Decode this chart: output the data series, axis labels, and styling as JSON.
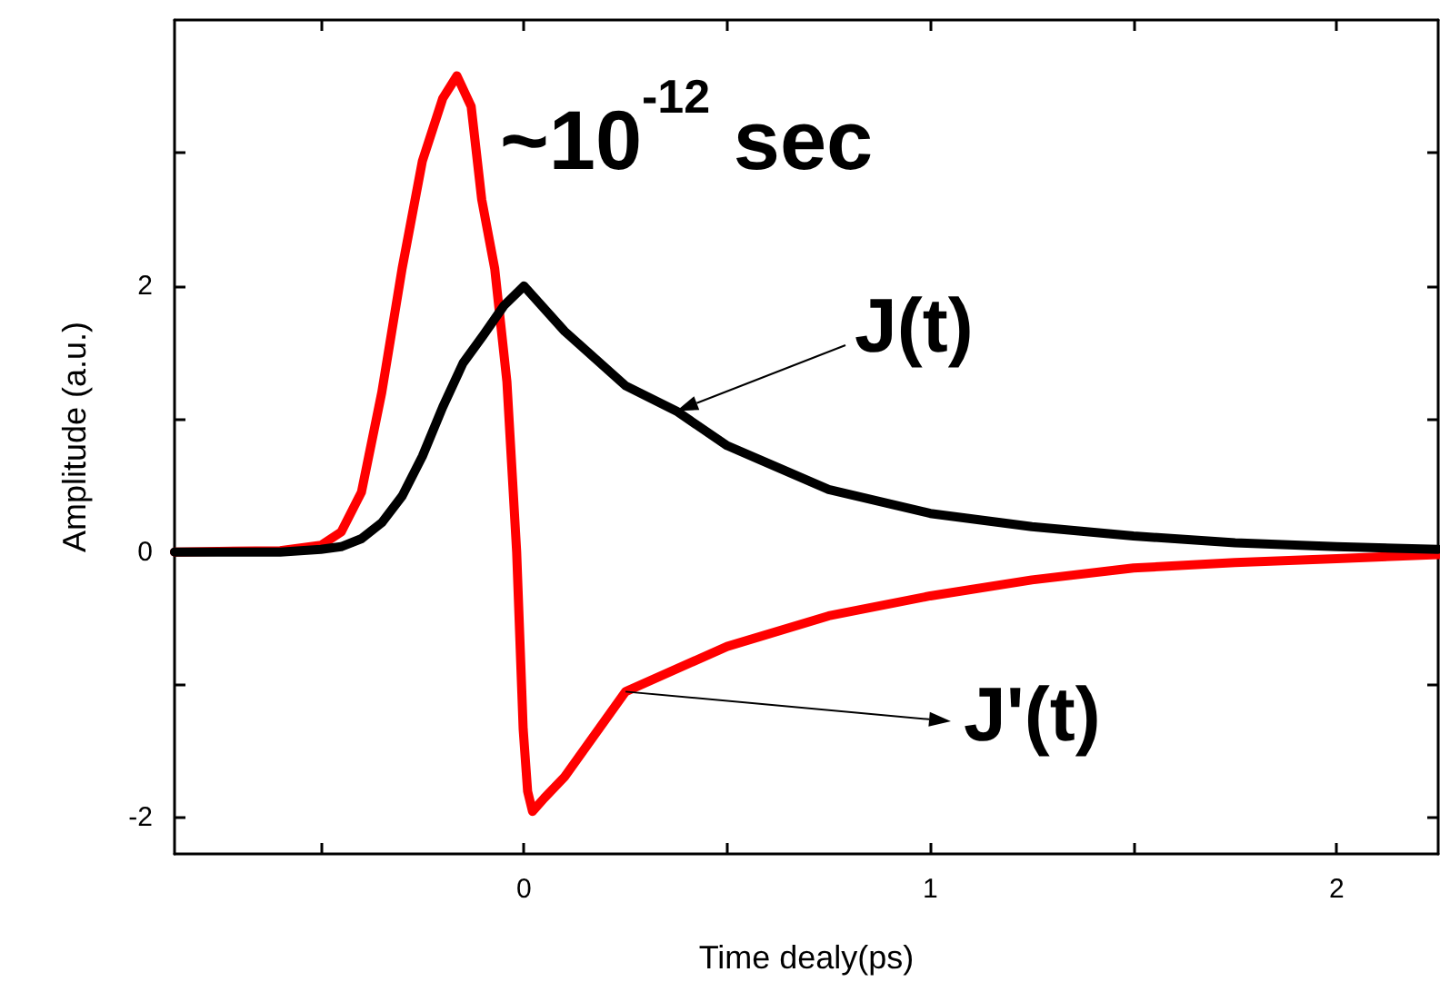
{
  "chart_data": {
    "type": "line",
    "xlabel": "Time dealy(ps)",
    "ylabel": "Amplitude (a.u.)",
    "annotations": [
      "~10$^{-12}$ sec",
      {
        "text": "J(t)",
        "x": 0.375,
        "y": 1.06
      },
      "J'(t)"
    ],
    "xlim": [
      -0.86,
      2.25
    ],
    "ylim": [
      -2.27,
      4
    ],
    "xticks": [
      {
        "value": -0.5,
        "label": null
      },
      0,
      {
        "value": 0.5,
        "label": null
      },
      1,
      {
        "value": 1.5,
        "label": null
      },
      2
    ],
    "yticks": [
      -2,
      {
        "value": -1,
        "label": null
      },
      0,
      {
        "value": 1,
        "label": null
      },
      2,
      {
        "value": 3,
        "label": null
      }
    ],
    "grid": false,
    "marker": "none",
    "line_style": "solid",
    "series": [
      {
        "color": "#000000",
        "x": [
          -0.86,
          -0.6,
          -0.5,
          -0.45,
          -0.4,
          -0.35,
          -0.3,
          -0.25,
          -0.2,
          -0.15,
          -0.1,
          -0.05,
          0,
          0.1,
          0.25,
          0.375,
          0.5,
          0.75,
          1,
          1.25,
          1.5,
          1.75,
          2,
          2.25
        ],
        "values": [
          0,
          0,
          0.02,
          0.04,
          0.1,
          0.22,
          0.42,
          0.72,
          1.09,
          1.42,
          1.63,
          1.85,
          2,
          1.66,
          1.25,
          1.06,
          0.8,
          0.47,
          0.29,
          0.19,
          0.12,
          0.07,
          0.04,
          0.02
        ]
      },
      {
        "color": "#ff0000",
        "x": [
          -0.86,
          -0.6,
          -0.5,
          -0.45,
          -0.4,
          -0.35,
          -0.3,
          -0.25,
          -0.2,
          -0.165,
          -0.13,
          -0.104,
          -0.072,
          -0.042,
          -0.018,
          -0.002,
          0.009,
          0.021,
          0.05,
          0.1,
          0.25,
          0.5,
          0.75,
          1,
          1.25,
          1.5,
          1.75,
          2,
          2.25
        ],
        "values": [
          0,
          0.01,
          0.05,
          0.15,
          0.45,
          1.2,
          2.13,
          2.94,
          3.41,
          3.58,
          3.35,
          2.65,
          2.13,
          1.28,
          0,
          -1.33,
          -1.8,
          -1.95,
          -1.85,
          -1.69,
          -1.05,
          -0.71,
          -0.48,
          -0.33,
          -0.21,
          -0.12,
          -0.08,
          -0.05,
          -0.02
        ]
      }
    ]
  }
}
